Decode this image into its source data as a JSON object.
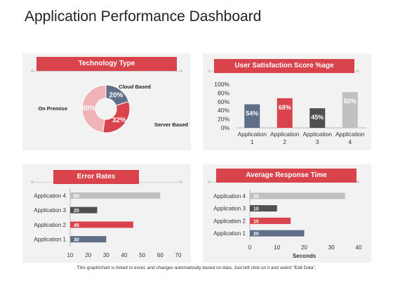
{
  "page": {
    "title": "Application Performance Dashboard",
    "footer": "This graph/chart is linked to excel, and changes automatically based on data. Just left click on it and select “Edit Data”."
  },
  "colors": {
    "accent_red": "#d9434b",
    "slate": "#5e6f87",
    "dark": "#505050",
    "light_gray": "#c0c0c0",
    "pink": "#f0b4b8",
    "panel_bg": "#f2f2f2"
  },
  "chart_data": [
    {
      "id": "technology",
      "type": "pie",
      "title": "Technology Type",
      "slices": [
        {
          "label": "Cloud Based",
          "value": 20,
          "text": "20%",
          "color": "#5e6f87"
        },
        {
          "label": "Server Based",
          "value": 32,
          "text": "32%",
          "color": "#d9434b"
        },
        {
          "label": "On Premise",
          "value": 48,
          "text": "48%",
          "color": "#f0b4b8"
        }
      ]
    },
    {
      "id": "satisfaction",
      "type": "bar",
      "title": "User Satisfaction Score %age",
      "categories": [
        "Application 1",
        "Application 2",
        "Application 3",
        "Application 4"
      ],
      "category_lines": [
        [
          "Application",
          "1"
        ],
        [
          "Application",
          "2"
        ],
        [
          "Application",
          "3"
        ],
        [
          "Application",
          "4"
        ]
      ],
      "values": [
        54,
        68,
        45,
        82
      ],
      "labels": [
        "54%",
        "68%",
        "45%",
        "82%"
      ],
      "colors": [
        "#5e6f87",
        "#d9434b",
        "#505050",
        "#c0c0c0"
      ],
      "ylim": [
        0,
        100
      ],
      "yticks": [
        0,
        20,
        40,
        60,
        80,
        100
      ],
      "ytick_labels": [
        "0%",
        "20%",
        "40%",
        "60%",
        "80%",
        "100%"
      ]
    },
    {
      "id": "error",
      "type": "bar",
      "orientation": "horizontal",
      "title": "Error Rates",
      "categories": [
        "Application 4",
        "Application 3",
        "Application 2",
        "Application 1"
      ],
      "values": [
        60,
        25,
        45,
        30
      ],
      "labels": [
        "60",
        "25",
        "45",
        "30"
      ],
      "colors": [
        "#c0c0c0",
        "#505050",
        "#d9434b",
        "#5e6f87"
      ],
      "xlim": [
        10,
        70
      ],
      "xticks": [
        10,
        20,
        30,
        40,
        50,
        60,
        70
      ],
      "xtick_labels": [
        "10",
        "20",
        "30",
        "40",
        "50",
        "60",
        "70"
      ]
    },
    {
      "id": "response",
      "type": "bar",
      "orientation": "horizontal",
      "title": "Average Response Time",
      "categories": [
        "Application 4",
        "Application 3",
        "Application 2",
        "Application 1"
      ],
      "values": [
        35,
        10,
        15,
        20
      ],
      "labels": [
        "35",
        "10",
        "15",
        "20"
      ],
      "colors": [
        "#c0c0c0",
        "#505050",
        "#d9434b",
        "#5e6f87"
      ],
      "xlim": [
        0,
        40
      ],
      "xticks": [
        0,
        10,
        20,
        30,
        40
      ],
      "xtick_labels": [
        "0",
        "10",
        "20",
        "30",
        "40"
      ],
      "xlabel": "Seconds"
    }
  ]
}
